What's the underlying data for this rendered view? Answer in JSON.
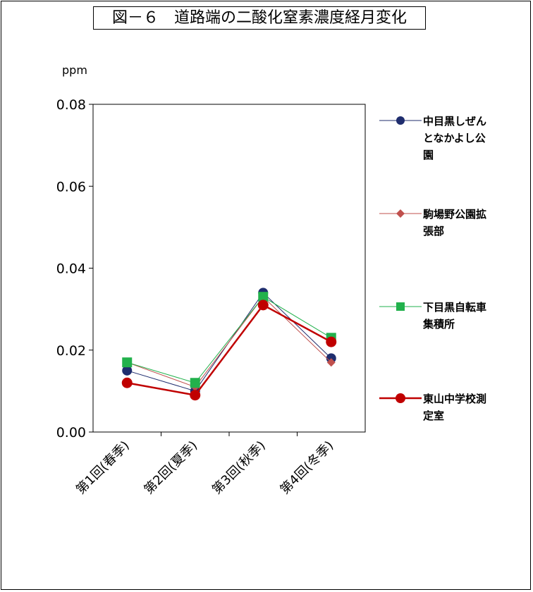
{
  "title": "図－６　道路端の二酸化窒素濃度経月変化",
  "unit_label": "ppm",
  "chart_data": {
    "type": "line",
    "title": "図－６　道路端の二酸化窒素濃度経月変化",
    "ylabel": "ppm",
    "xlabel": "",
    "categories": [
      "第1回(春季)",
      "第2回(夏季)",
      "第3回(秋季)",
      "第4回(冬季)"
    ],
    "ylim": [
      0,
      0.08
    ],
    "yticks": [
      "0.00",
      "0.02",
      "0.04",
      "0.06",
      "0.08"
    ],
    "legend_position": "right",
    "grid": false,
    "series": [
      {
        "name": "中目黒しぜんとなかよし公園",
        "values": [
          0.015,
          0.01,
          0.034,
          0.018
        ],
        "color": "#1f2d6e",
        "marker": "circle"
      },
      {
        "name": "駒場野公園拡張部",
        "values": [
          0.017,
          0.011,
          0.033,
          0.017
        ],
        "color": "#c0504d",
        "marker": "diamond"
      },
      {
        "name": "下目黒自転車集積所",
        "values": [
          0.017,
          0.012,
          0.033,
          0.023
        ],
        "color": "#22b14c",
        "marker": "square"
      },
      {
        "name": "東山中学校測定室",
        "values": [
          0.012,
          0.009,
          0.031,
          0.022
        ],
        "color": "#c00000",
        "marker": "circle"
      }
    ]
  },
  "legend": [
    {
      "label_line1": "中目黒しぜん",
      "label_line2": "となかよし公",
      "label_line3": "園"
    },
    {
      "label_line1": "駒場野公園拡",
      "label_line2": "張部"
    },
    {
      "label_line1": "下目黒自転車",
      "label_line2": "集積所"
    },
    {
      "label_line1": "東山中学校測",
      "label_line2": "定室"
    }
  ]
}
